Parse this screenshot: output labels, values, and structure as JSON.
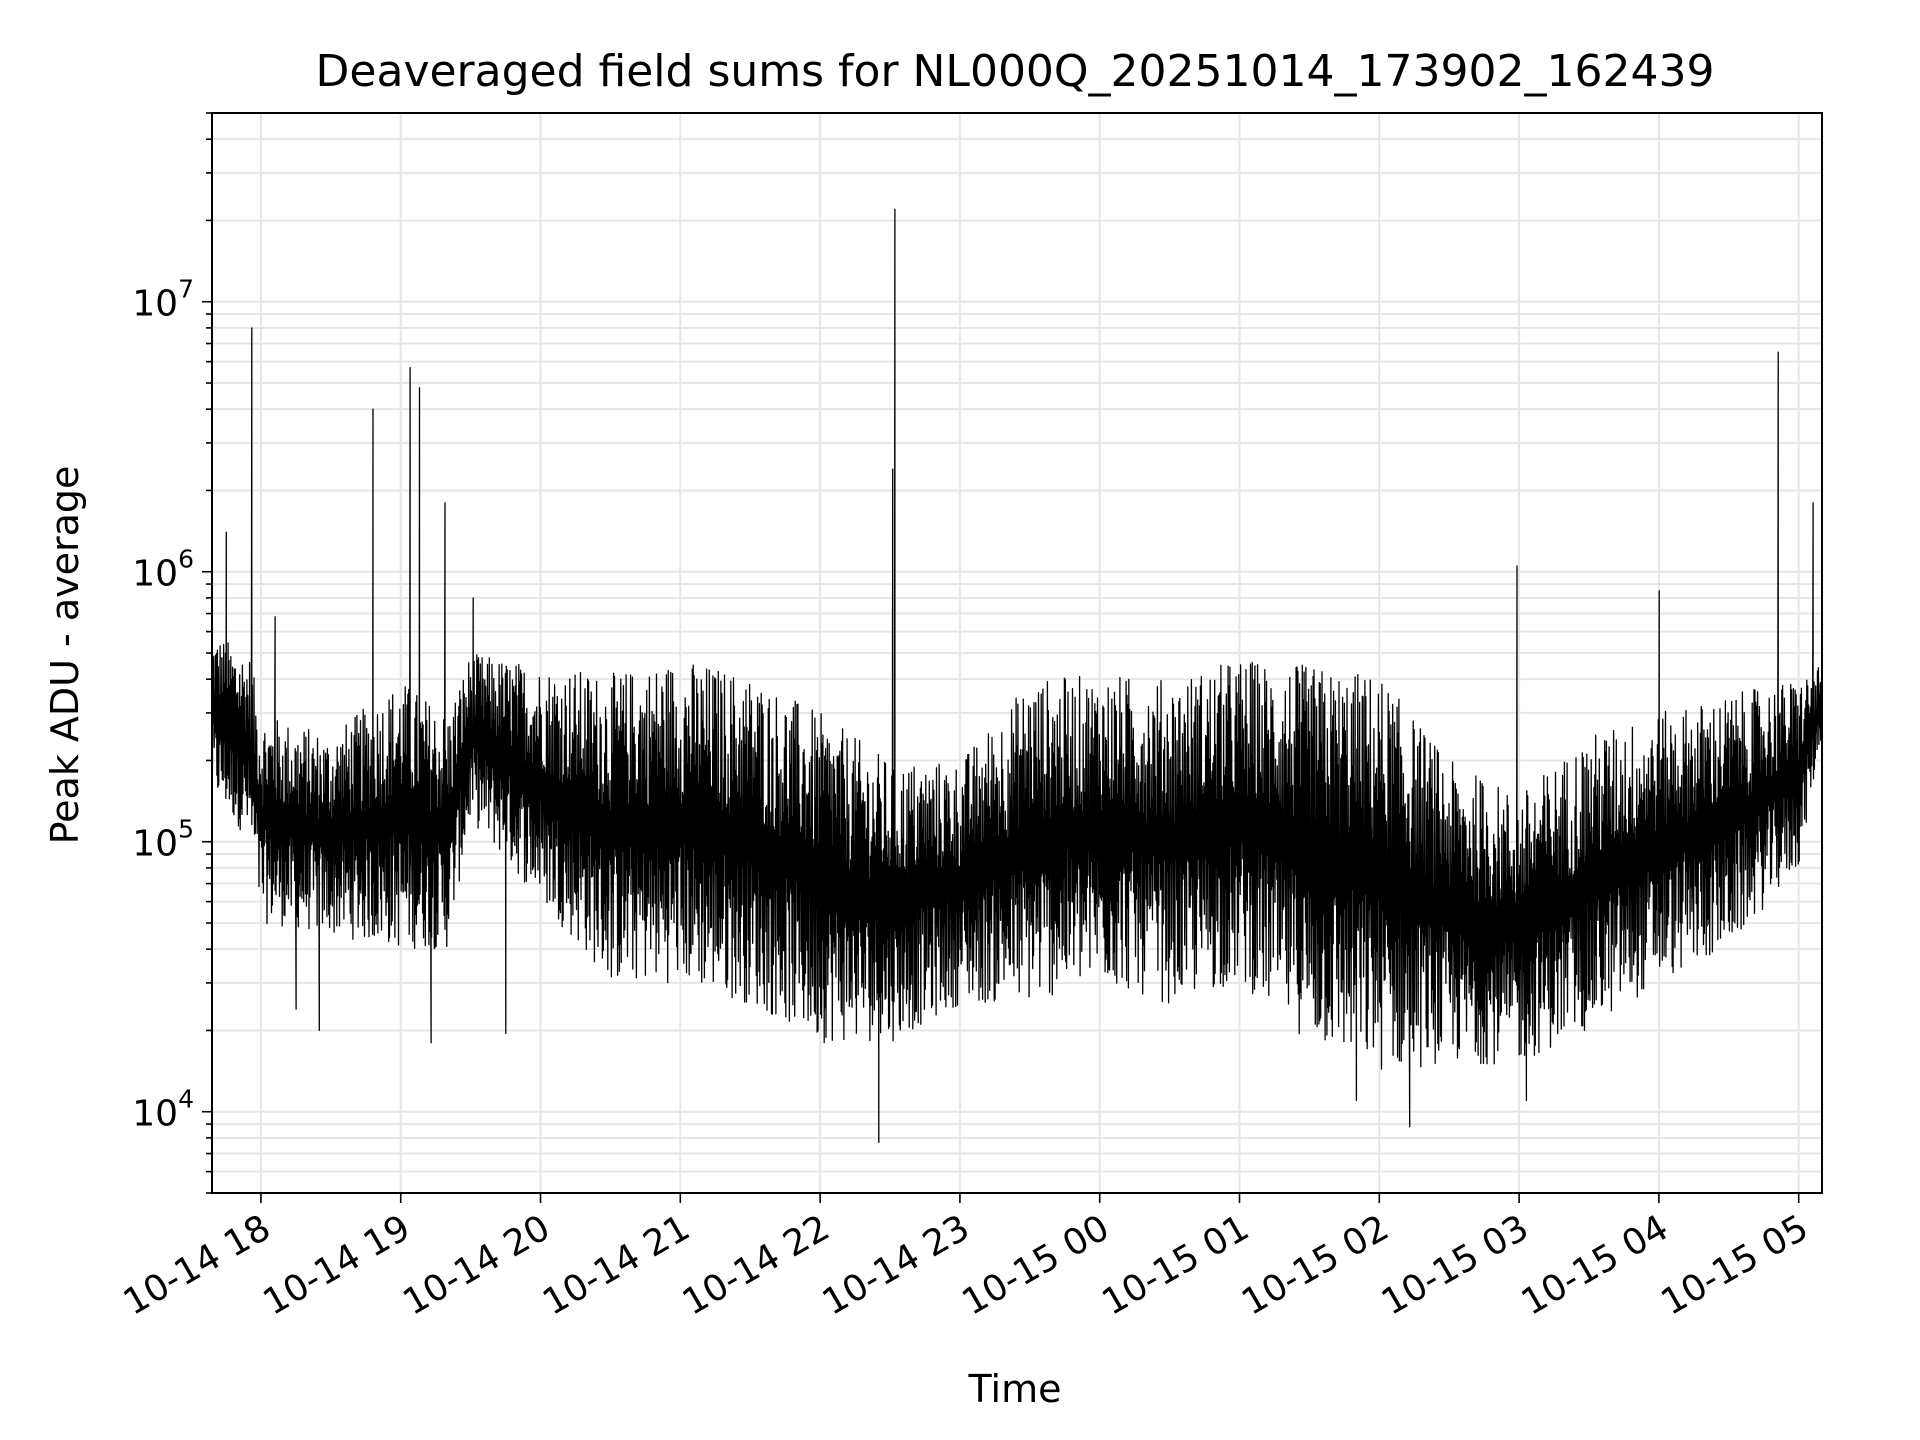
{
  "chart_data": {
    "type": "line",
    "title": "Deaveraged field sums for NL000Q_20251014_173902_162439",
    "xlabel": "Time",
    "ylabel": "Peak ADU - average",
    "yscale": "log",
    "ylim": [
      5000,
      50000000
    ],
    "xlim": [
      "2025-10-14T17:39",
      "2025-10-15T05:10"
    ],
    "grid": true,
    "line_color": "#000000",
    "x_ticks": [
      {
        "label": "10-14 18",
        "t": "2025-10-14T18:00"
      },
      {
        "label": "10-14 19",
        "t": "2025-10-14T19:00"
      },
      {
        "label": "10-14 20",
        "t": "2025-10-14T20:00"
      },
      {
        "label": "10-14 21",
        "t": "2025-10-14T21:00"
      },
      {
        "label": "10-14 22",
        "t": "2025-10-14T22:00"
      },
      {
        "label": "10-14 23",
        "t": "2025-10-14T23:00"
      },
      {
        "label": "10-15 00",
        "t": "2025-10-15T00:00"
      },
      {
        "label": "10-15 01",
        "t": "2025-10-15T01:00"
      },
      {
        "label": "10-15 02",
        "t": "2025-10-15T02:00"
      },
      {
        "label": "10-15 03",
        "t": "2025-10-15T03:00"
      },
      {
        "label": "10-15 04",
        "t": "2025-10-15T04:00"
      },
      {
        "label": "10-15 05",
        "t": "2025-10-15T05:00"
      }
    ],
    "y_ticks": [
      {
        "base": "10",
        "exp": "4",
        "value": 10000
      },
      {
        "base": "10",
        "exp": "5",
        "value": 100000
      },
      {
        "base": "10",
        "exp": "6",
        "value": 1000000
      },
      {
        "base": "10",
        "exp": "7",
        "value": 10000000
      }
    ],
    "envelope": [
      {
        "t": "2025-10-14T17:39",
        "low": 150000,
        "high": 600000
      },
      {
        "t": "2025-10-14T17:55",
        "low": 100000,
        "high": 500000
      },
      {
        "t": "2025-10-14T18:00",
        "low": 50000,
        "high": 300000
      },
      {
        "t": "2025-10-14T18:30",
        "low": 45000,
        "high": 250000
      },
      {
        "t": "2025-10-14T19:00",
        "low": 40000,
        "high": 400000
      },
      {
        "t": "2025-10-14T19:20",
        "low": 40000,
        "high": 300000
      },
      {
        "t": "2025-10-14T19:30",
        "low": 120000,
        "high": 500000
      },
      {
        "t": "2025-10-14T20:00",
        "low": 60000,
        "high": 450000
      },
      {
        "t": "2025-10-14T20:30",
        "low": 30000,
        "high": 420000
      },
      {
        "t": "2025-10-14T21:00",
        "low": 30000,
        "high": 480000
      },
      {
        "t": "2025-10-14T21:30",
        "low": 25000,
        "high": 420000
      },
      {
        "t": "2025-10-14T22:00",
        "low": 18000,
        "high": 300000
      },
      {
        "t": "2025-10-14T22:30",
        "low": 18000,
        "high": 200000
      },
      {
        "t": "2025-10-14T23:00",
        "low": 25000,
        "high": 200000
      },
      {
        "t": "2025-10-14T23:30",
        "low": 25000,
        "high": 400000
      },
      {
        "t": "2025-10-15T00:00",
        "low": 30000,
        "high": 420000
      },
      {
        "t": "2025-10-15T00:30",
        "low": 25000,
        "high": 400000
      },
      {
        "t": "2025-10-15T01:00",
        "low": 30000,
        "high": 480000
      },
      {
        "t": "2025-10-15T01:30",
        "low": 18000,
        "high": 450000
      },
      {
        "t": "2025-10-15T02:00",
        "low": 14000,
        "high": 420000
      },
      {
        "t": "2025-10-15T02:30",
        "low": 15000,
        "high": 200000
      },
      {
        "t": "2025-10-15T03:00",
        "low": 15000,
        "high": 150000
      },
      {
        "t": "2025-10-15T03:30",
        "low": 20000,
        "high": 250000
      },
      {
        "t": "2025-10-15T04:00",
        "low": 30000,
        "high": 300000
      },
      {
        "t": "2025-10-15T04:30",
        "low": 40000,
        "high": 350000
      },
      {
        "t": "2025-10-15T05:00",
        "low": 80000,
        "high": 400000
      },
      {
        "t": "2025-10-15T05:10",
        "low": 250000,
        "high": 450000
      }
    ],
    "spikes": [
      {
        "t": "2025-10-14T17:45",
        "value": 1400000
      },
      {
        "t": "2025-10-14T17:56",
        "value": 8000000
      },
      {
        "t": "2025-10-14T18:06",
        "value": 680000
      },
      {
        "t": "2025-10-14T18:48",
        "value": 4000000
      },
      {
        "t": "2025-10-14T19:04",
        "value": 5700000
      },
      {
        "t": "2025-10-14T19:08",
        "value": 4800000
      },
      {
        "t": "2025-10-14T19:19",
        "value": 1800000
      },
      {
        "t": "2025-10-14T19:31",
        "value": 800000
      },
      {
        "t": "2025-10-14T22:31",
        "value": 2400000
      },
      {
        "t": "2025-10-14T22:32",
        "value": 22000000
      },
      {
        "t": "2025-10-15T02:59",
        "value": 1050000
      },
      {
        "t": "2025-10-15T04:00",
        "value": 850000
      },
      {
        "t": "2025-10-15T04:51",
        "value": 6500000
      },
      {
        "t": "2025-10-15T05:06",
        "value": 1800000
      }
    ],
    "dips": [
      {
        "t": "2025-10-14T18:15",
        "value": 24000
      },
      {
        "t": "2025-10-14T18:25",
        "value": 20000
      },
      {
        "t": "2025-10-14T19:13",
        "value": 18000
      },
      {
        "t": "2025-10-14T19:45",
        "value": 19500
      },
      {
        "t": "2025-10-14T22:25",
        "value": 7700
      },
      {
        "t": "2025-10-15T01:50",
        "value": 11000
      },
      {
        "t": "2025-10-15T02:13",
        "value": 8800
      },
      {
        "t": "2025-10-15T03:03",
        "value": 11000
      }
    ]
  }
}
